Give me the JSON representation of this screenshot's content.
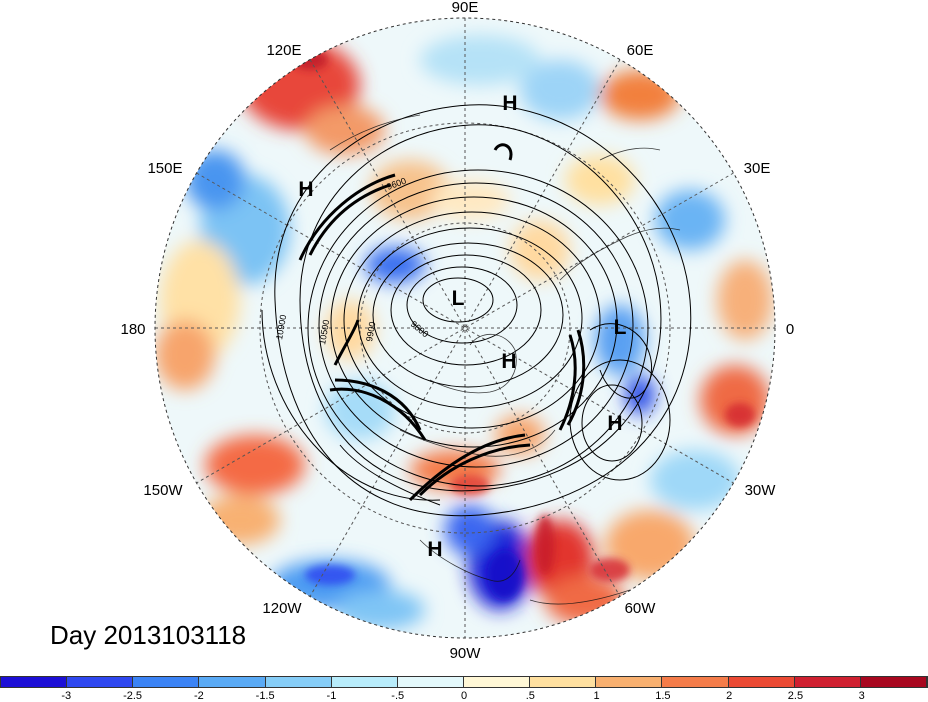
{
  "title": "Day 2013103118",
  "longitude_labels": {
    "top": "90E",
    "upper_left": "120E",
    "upper_right": "60E",
    "left_upper": "150E",
    "right_upper": "30E",
    "left": "180",
    "right": "0",
    "left_lower": "150W",
    "right_lower": "30W",
    "lower_left": "120W",
    "lower_right": "60W",
    "bottom": "90W"
  },
  "pressure_centers": [
    {
      "label": "H",
      "name": "high-east-siberia"
    },
    {
      "label": "H",
      "name": "high-west-pacific"
    },
    {
      "label": "L",
      "name": "low-polar"
    },
    {
      "label": "H",
      "name": "high-canada"
    },
    {
      "label": "L",
      "name": "low-europe"
    },
    {
      "label": "H",
      "name": "high-atlantic"
    },
    {
      "label": "H",
      "name": "high-mexico"
    }
  ],
  "contour_labels": [
    "10900",
    "10500",
    "9900",
    "9600",
    "9600"
  ],
  "colorbar": {
    "colors": [
      "#1c0fd6",
      "#2f48f0",
      "#3b83f5",
      "#5aaaf5",
      "#86cdf7",
      "#b8ecfb",
      "#e3f8fb",
      "#fff7d6",
      "#ffe0a0",
      "#f8b070",
      "#f47c4a",
      "#eb4a34",
      "#cf2030",
      "#a8071f"
    ],
    "labels": [
      "-3",
      "-2.5",
      "-2",
      "-1.5",
      "-1",
      "-.5",
      "0",
      ".5",
      "1",
      "1.5",
      "2",
      "2.5",
      "3"
    ]
  }
}
